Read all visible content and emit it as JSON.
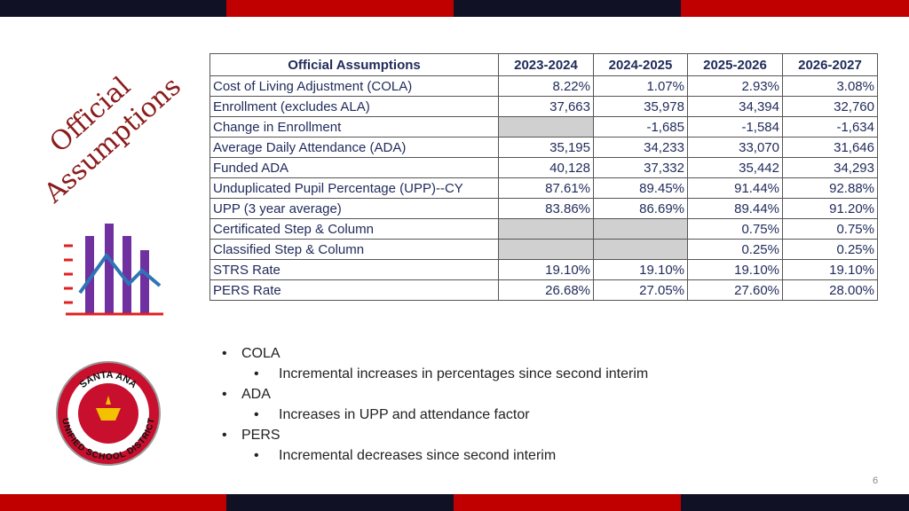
{
  "slide": {
    "title_lines": [
      "Official",
      "Assumptions"
    ],
    "table": {
      "header": [
        "Official Assumptions",
        "2023-2024",
        "2024-2025",
        "2025-2026",
        "2026-2027"
      ],
      "rows": [
        [
          "Cost of Living Adjustment (COLA)",
          "8.22%",
          "1.07%",
          "2.93%",
          "3.08%"
        ],
        [
          "Enrollment (excludes ALA)",
          "37,663",
          "35,978",
          "34,394",
          "32,760"
        ],
        [
          "Change in Enrollment",
          null,
          "-1,685",
          "-1,584",
          "-1,634"
        ],
        [
          "Average Daily Attendance (ADA)",
          "35,195",
          "34,233",
          "33,070",
          "31,646"
        ],
        [
          "Funded ADA",
          "40,128",
          "37,332",
          "35,442",
          "34,293"
        ],
        [
          "Unduplicated Pupil Percentage (UPP)--CY",
          "87.61%",
          "89.45%",
          "91.44%",
          "92.88%"
        ],
        [
          "UPP (3 year average)",
          "83.86%",
          "86.69%",
          "89.44%",
          "91.20%"
        ],
        [
          "Certificated Step & Column",
          null,
          null,
          "0.75%",
          "0.75%"
        ],
        [
          "Classified Step & Column",
          null,
          null,
          "0.25%",
          "0.25%"
        ],
        [
          "STRS Rate",
          "19.10%",
          "19.10%",
          "19.10%",
          "19.10%"
        ],
        [
          "PERS Rate",
          "26.68%",
          "27.05%",
          "27.60%",
          "28.00%"
        ]
      ]
    },
    "bullets": [
      {
        "text": "COLA",
        "sub": [
          "Incremental increases in percentages since second interim"
        ]
      },
      {
        "text": "ADA",
        "sub": [
          "Increases in UPP and attendance factor"
        ]
      },
      {
        "text": "PERS",
        "sub": [
          "Incremental decreases since second interim"
        ]
      }
    ],
    "logo": {
      "top": "SANTA ANA",
      "bottom": "UNIFIED SCHOOL DISTRICT"
    },
    "page_number": "6"
  }
}
